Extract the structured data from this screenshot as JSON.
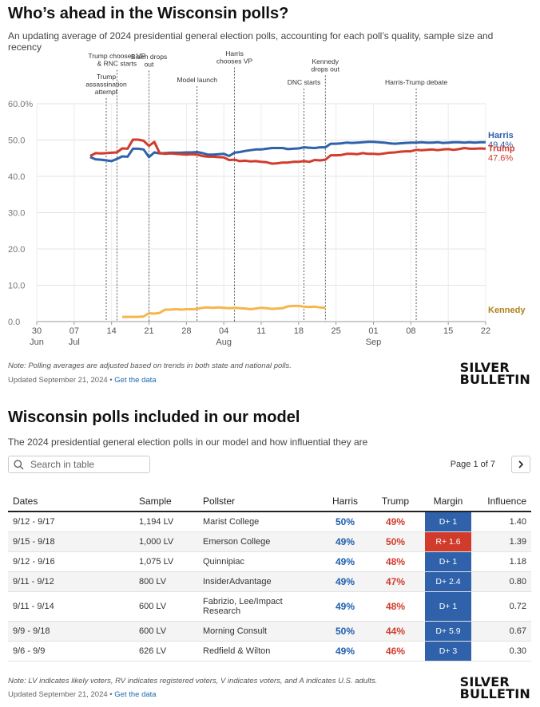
{
  "header": {
    "title": "Who’s ahead in the Wisconsin polls?",
    "subtitle": "An updating average of 2024 presidential general election polls, accounting for each poll’s quality, sample size and recency"
  },
  "chart_data": {
    "type": "line",
    "title": "Who’s ahead in the Wisconsin polls?",
    "x_tick_labels": [
      {
        "day": 0,
        "label": "30",
        "sub": "Jun"
      },
      {
        "day": 7,
        "label": "07",
        "sub": "Jul"
      },
      {
        "day": 14,
        "label": "14",
        "sub": ""
      },
      {
        "day": 21,
        "label": "21",
        "sub": ""
      },
      {
        "day": 28,
        "label": "28",
        "sub": ""
      },
      {
        "day": 35,
        "label": "04",
        "sub": "Aug"
      },
      {
        "day": 42,
        "label": "11",
        "sub": ""
      },
      {
        "day": 49,
        "label": "18",
        "sub": ""
      },
      {
        "day": 56,
        "label": "25",
        "sub": ""
      },
      {
        "day": 63,
        "label": "01",
        "sub": "Sep"
      },
      {
        "day": 70,
        "label": "08",
        "sub": ""
      },
      {
        "day": 77,
        "label": "15",
        "sub": ""
      },
      {
        "day": 84,
        "label": "22",
        "sub": ""
      }
    ],
    "y_ticks": [
      "0.0",
      "10.0",
      "20.0",
      "30.0",
      "40.0",
      "50.0",
      "60.0%"
    ],
    "ylim": [
      0,
      60
    ],
    "xlim_days": [
      0,
      84
    ],
    "series": [
      {
        "name": "Harris",
        "end_label": "49.4%",
        "color": "#2f62aa",
        "points": [
          [
            10,
            45.3
          ],
          [
            11,
            44.7
          ],
          [
            12,
            44.6
          ],
          [
            13,
            44.4
          ],
          [
            14,
            44.2
          ],
          [
            15,
            44.8
          ],
          [
            16,
            45.5
          ],
          [
            17,
            45.4
          ],
          [
            18,
            47.6
          ],
          [
            19,
            47.6
          ],
          [
            20,
            47.4
          ],
          [
            21,
            45.3
          ],
          [
            22,
            46.6
          ],
          [
            23,
            46.3
          ],
          [
            24,
            46.4
          ],
          [
            25,
            46.5
          ],
          [
            26,
            46.5
          ],
          [
            27,
            46.5
          ],
          [
            28,
            46.6
          ],
          [
            29,
            46.6
          ],
          [
            30,
            46.7
          ],
          [
            31,
            46.4
          ],
          [
            32,
            46.0
          ],
          [
            33,
            46.0
          ],
          [
            34,
            46.1
          ],
          [
            35,
            46.2
          ],
          [
            36,
            45.6
          ],
          [
            37,
            46.5
          ],
          [
            38,
            46.7
          ],
          [
            39,
            47.0
          ],
          [
            40,
            47.2
          ],
          [
            41,
            47.4
          ],
          [
            42,
            47.4
          ],
          [
            43,
            47.6
          ],
          [
            44,
            47.8
          ],
          [
            45,
            47.8
          ],
          [
            46,
            47.8
          ],
          [
            47,
            47.5
          ],
          [
            48,
            47.6
          ],
          [
            49,
            47.7
          ],
          [
            50,
            48.0
          ],
          [
            51,
            47.9
          ],
          [
            52,
            47.8
          ],
          [
            53,
            48.0
          ],
          [
            54,
            48.0
          ],
          [
            55,
            49.0
          ],
          [
            56,
            49.0
          ],
          [
            57,
            49.1
          ],
          [
            58,
            49.3
          ],
          [
            59,
            49.2
          ],
          [
            60,
            49.3
          ],
          [
            61,
            49.4
          ],
          [
            62,
            49.5
          ],
          [
            63,
            49.5
          ],
          [
            64,
            49.4
          ],
          [
            65,
            49.3
          ],
          [
            66,
            49.1
          ],
          [
            67,
            49.0
          ],
          [
            68,
            49.1
          ],
          [
            69,
            49.2
          ],
          [
            70,
            49.3
          ],
          [
            71,
            49.3
          ],
          [
            72,
            49.4
          ],
          [
            73,
            49.3
          ],
          [
            74,
            49.3
          ],
          [
            75,
            49.4
          ],
          [
            76,
            49.2
          ],
          [
            77,
            49.3
          ],
          [
            78,
            49.4
          ],
          [
            79,
            49.4
          ],
          [
            80,
            49.3
          ],
          [
            81,
            49.4
          ],
          [
            82,
            49.3
          ],
          [
            83,
            49.4
          ],
          [
            84,
            49.4
          ]
        ]
      },
      {
        "name": "Trump",
        "end_label": "47.6%",
        "color": "#d13b2b",
        "points": [
          [
            10,
            45.6
          ],
          [
            11,
            46.4
          ],
          [
            12,
            46.3
          ],
          [
            13,
            46.4
          ],
          [
            14,
            46.5
          ],
          [
            15,
            46.6
          ],
          [
            16,
            47.7
          ],
          [
            17,
            47.6
          ],
          [
            18,
            50.1
          ],
          [
            19,
            50.1
          ],
          [
            20,
            49.8
          ],
          [
            21,
            48.4
          ],
          [
            22,
            49.5
          ],
          [
            23,
            46.4
          ],
          [
            24,
            46.2
          ],
          [
            25,
            46.3
          ],
          [
            26,
            46.2
          ],
          [
            27,
            46.1
          ],
          [
            28,
            46.0
          ],
          [
            29,
            46.1
          ],
          [
            30,
            46.0
          ],
          [
            31,
            45.6
          ],
          [
            32,
            45.4
          ],
          [
            33,
            45.4
          ],
          [
            34,
            45.3
          ],
          [
            35,
            45.2
          ],
          [
            36,
            44.5
          ],
          [
            37,
            44.6
          ],
          [
            38,
            44.2
          ],
          [
            39,
            44.3
          ],
          [
            40,
            44.1
          ],
          [
            41,
            44.2
          ],
          [
            42,
            44.0
          ],
          [
            43,
            43.9
          ],
          [
            44,
            43.5
          ],
          [
            45,
            43.6
          ],
          [
            46,
            43.8
          ],
          [
            47,
            43.8
          ],
          [
            48,
            44.0
          ],
          [
            49,
            44.0
          ],
          [
            50,
            44.2
          ],
          [
            51,
            44.0
          ],
          [
            52,
            44.5
          ],
          [
            53,
            44.4
          ],
          [
            54,
            44.6
          ],
          [
            55,
            45.8
          ],
          [
            56,
            45.8
          ],
          [
            57,
            45.9
          ],
          [
            58,
            46.2
          ],
          [
            59,
            46.2
          ],
          [
            60,
            46.1
          ],
          [
            61,
            46.4
          ],
          [
            62,
            46.2
          ],
          [
            63,
            46.2
          ],
          [
            64,
            46.1
          ],
          [
            65,
            46.3
          ],
          [
            66,
            46.5
          ],
          [
            67,
            46.6
          ],
          [
            68,
            46.8
          ],
          [
            69,
            46.9
          ],
          [
            70,
            46.9
          ],
          [
            71,
            47.3
          ],
          [
            72,
            47.2
          ],
          [
            73,
            47.3
          ],
          [
            74,
            47.4
          ],
          [
            75,
            47.2
          ],
          [
            76,
            47.4
          ],
          [
            77,
            47.5
          ],
          [
            78,
            47.3
          ],
          [
            79,
            47.5
          ],
          [
            80,
            47.8
          ],
          [
            81,
            47.6
          ],
          [
            82,
            47.6
          ],
          [
            83,
            47.7
          ],
          [
            84,
            47.6
          ]
        ]
      },
      {
        "name": "Kennedy",
        "end_label": "",
        "color": "#f7b54b",
        "points": [
          [
            16,
            1.3
          ],
          [
            17,
            1.3
          ],
          [
            18,
            1.3
          ],
          [
            19,
            1.3
          ],
          [
            20,
            1.4
          ],
          [
            21,
            2.3
          ],
          [
            22,
            2.2
          ],
          [
            23,
            2.4
          ],
          [
            24,
            3.3
          ],
          [
            25,
            3.3
          ],
          [
            26,
            3.4
          ],
          [
            27,
            3.3
          ],
          [
            28,
            3.4
          ],
          [
            29,
            3.4
          ],
          [
            30,
            3.5
          ],
          [
            31,
            3.8
          ],
          [
            32,
            3.9
          ],
          [
            33,
            3.8
          ],
          [
            34,
            3.9
          ],
          [
            35,
            3.8
          ],
          [
            36,
            3.7
          ],
          [
            37,
            3.8
          ],
          [
            38,
            3.7
          ],
          [
            39,
            3.6
          ],
          [
            40,
            3.4
          ],
          [
            41,
            3.6
          ],
          [
            42,
            3.8
          ],
          [
            43,
            3.7
          ],
          [
            44,
            3.5
          ],
          [
            45,
            3.6
          ],
          [
            46,
            3.7
          ],
          [
            47,
            4.2
          ],
          [
            48,
            4.3
          ],
          [
            49,
            4.3
          ],
          [
            50,
            4.1
          ],
          [
            51,
            4.0
          ],
          [
            52,
            4.1
          ],
          [
            53,
            3.9
          ],
          [
            54,
            3.8
          ]
        ]
      }
    ],
    "events": [
      {
        "day": 13,
        "label": [
          "Trump",
          "assassination",
          "attempt"
        ]
      },
      {
        "day": 15,
        "label": [
          "Trump chooses VP",
          "& RNC starts"
        ]
      },
      {
        "day": 21,
        "label": [
          "Biden drops",
          "out"
        ]
      },
      {
        "day": 30,
        "label": [
          "Model launch"
        ]
      },
      {
        "day": 37,
        "label": [
          "Harris",
          "chooses VP"
        ]
      },
      {
        "day": 50,
        "label": [
          "DNC starts"
        ]
      },
      {
        "day": 54,
        "label": [
          "Kennedy",
          "drops out"
        ]
      },
      {
        "day": 71,
        "label": [
          "Harris-Trump debate"
        ]
      }
    ],
    "grid": true,
    "legend": "right-end labels"
  },
  "chart_note": "Note: Polling averages are adjusted based on trends in both state and national polls.",
  "updated": "Updated September 21, 2024",
  "get_data": "Get the data",
  "logo": {
    "line1": "SILVER",
    "line2": "BULLETIN"
  },
  "table_section": {
    "title": "Wisconsin polls included in our model",
    "subtitle": "The 2024 presidential general election polls in our model and how influential they are",
    "search_placeholder": "Search in table",
    "pager": "Page 1 of 7",
    "columns": {
      "dates": "Dates",
      "sample": "Sample",
      "pollster": "Pollster",
      "harris": "Harris",
      "trump": "Trump",
      "margin": "Margin",
      "influence": "Influence"
    },
    "rows": [
      {
        "dates": "9/12 - 9/17",
        "sample": "1,194 LV",
        "pollster": "Marist College",
        "harris": "50%",
        "trump": "49%",
        "margin": "D+ 1",
        "party": "D",
        "influence": "1.40"
      },
      {
        "dates": "9/15 - 9/18",
        "sample": "1,000 LV",
        "pollster": "Emerson College",
        "harris": "49%",
        "trump": "50%",
        "margin": "R+ 1.6",
        "party": "R",
        "influence": "1.39"
      },
      {
        "dates": "9/12 - 9/16",
        "sample": "1,075 LV",
        "pollster": "Quinnipiac",
        "harris": "49%",
        "trump": "48%",
        "margin": "D+ 1",
        "party": "D",
        "influence": "1.18"
      },
      {
        "dates": "9/11 - 9/12",
        "sample": "800 LV",
        "pollster": "InsiderAdvantage",
        "harris": "49%",
        "trump": "47%",
        "margin": "D+ 2.4",
        "party": "D",
        "influence": "0.80"
      },
      {
        "dates": "9/11 - 9/14",
        "sample": "600 LV",
        "pollster": "Fabrizio, Lee/Impact Research",
        "harris": "49%",
        "trump": "48%",
        "margin": "D+ 1",
        "party": "D",
        "influence": "0.72"
      },
      {
        "dates": "9/9 - 9/18",
        "sample": "600 LV",
        "pollster": "Morning Consult",
        "harris": "50%",
        "trump": "44%",
        "margin": "D+ 5.9",
        "party": "D",
        "influence": "0.67"
      },
      {
        "dates": "9/6 - 9/9",
        "sample": "626 LV",
        "pollster": "Redfield & Wilton",
        "harris": "49%",
        "trump": "46%",
        "margin": "D+ 3",
        "party": "D",
        "influence": "0.30"
      }
    ],
    "note": "Note: LV indicates likely voters, RV indicates registered voters, V indicates voters, and A indicates U.S. adults.",
    "updated": "Updated September 21, 2024",
    "get_data": "Get the data"
  }
}
